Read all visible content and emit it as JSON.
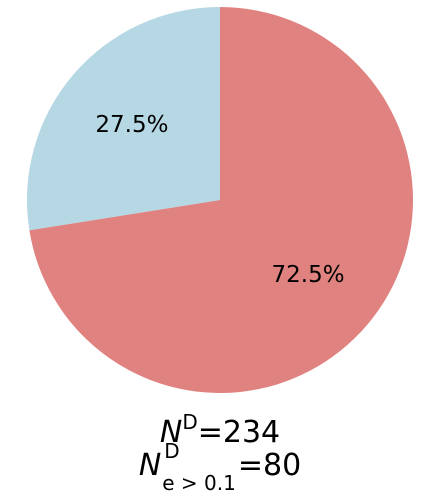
{
  "chart_data": {
    "type": "pie",
    "slices": [
      {
        "label": "72.5%",
        "value": 72.5,
        "color": "#e08380"
      },
      {
        "label": "27.5%",
        "value": 27.5,
        "color": "#b5d8e4"
      }
    ],
    "start_angle_deg": 90,
    "direction": "clockwise",
    "legend": "none"
  },
  "caption": {
    "line1": {
      "symbol": "N",
      "superscript": "D",
      "text": "=234"
    },
    "line2": {
      "symbol": "N",
      "superscript": "D",
      "subscript": "e > 0.1",
      "text": "=80"
    }
  }
}
